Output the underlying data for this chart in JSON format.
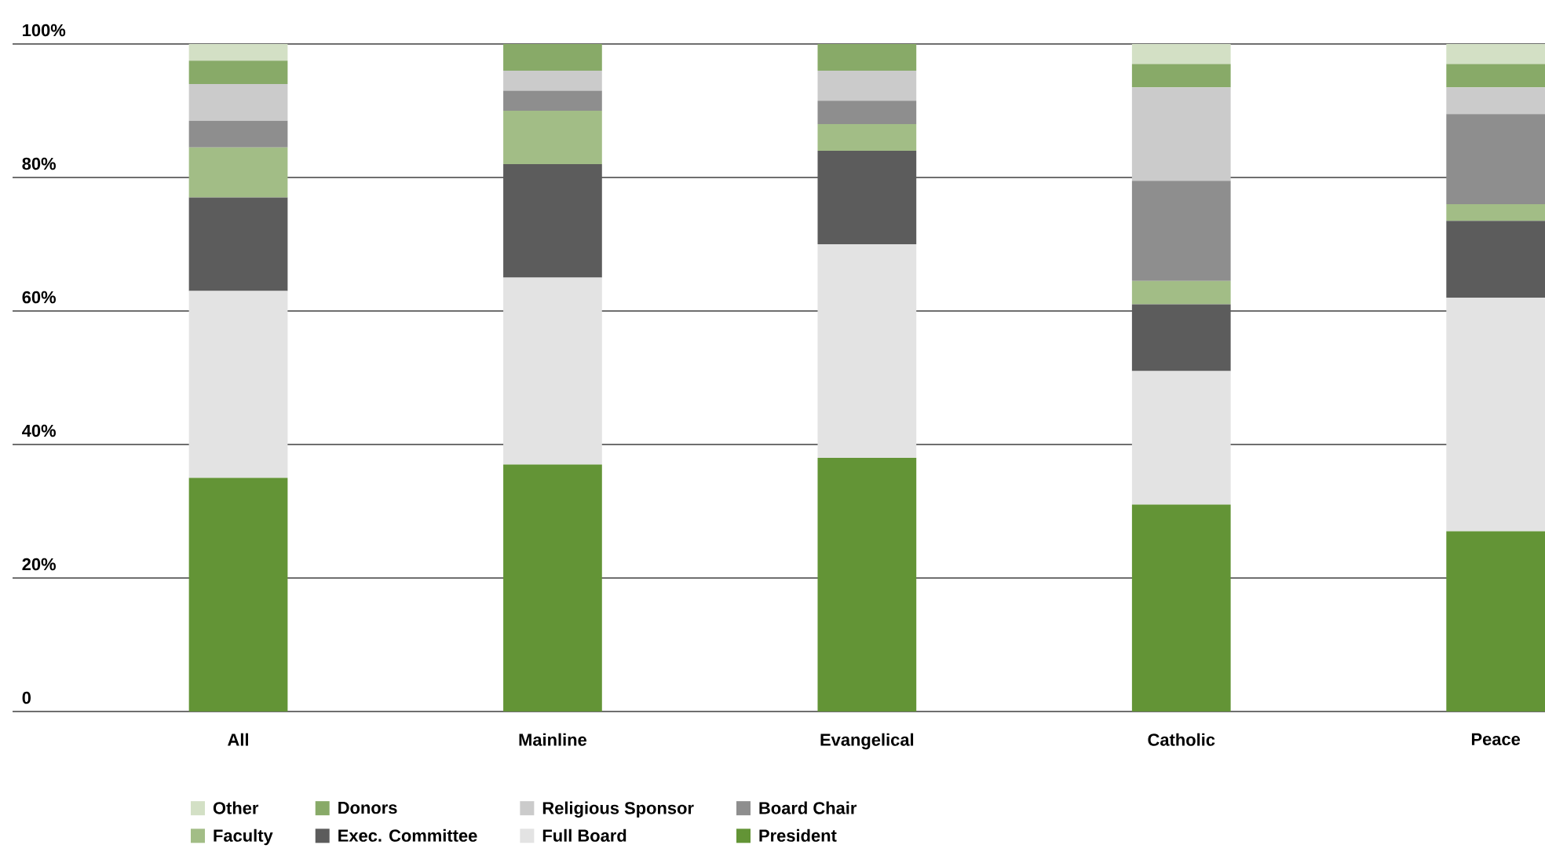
{
  "chart_data": {
    "type": "bar",
    "stacked": true,
    "categories": [
      "All",
      "Mainline",
      "Evangelical",
      "Catholic",
      "Peace"
    ],
    "series": [
      {
        "name": "President",
        "color": "#639436",
        "values": [
          35,
          37,
          38,
          31,
          27
        ]
      },
      {
        "name": "Full Board",
        "color": "#e3e3e3",
        "values": [
          28,
          28,
          32,
          20,
          35
        ]
      },
      {
        "name": "Exec. Committee",
        "color": "#5c5c5c",
        "values": [
          14,
          17,
          14,
          10,
          11.5
        ]
      },
      {
        "name": "Faculty",
        "color": "#a2bd86",
        "values": [
          7.5,
          8,
          4,
          3.5,
          2.5
        ]
      },
      {
        "name": "Board Chair",
        "color": "#8e8e8e",
        "values": [
          4,
          3,
          3.5,
          15,
          13.5
        ]
      },
      {
        "name": "Religious Sponsor",
        "color": "#cbcbcb",
        "values": [
          5.5,
          3,
          4.5,
          14,
          4
        ]
      },
      {
        "name": "Donors",
        "color": "#88aa68",
        "values": [
          3.5,
          4,
          4,
          3.5,
          3.5
        ]
      },
      {
        "name": "Other",
        "color": "#d3e0c5",
        "values": [
          2.5,
          null,
          null,
          3,
          3
        ]
      }
    ],
    "ylim": [
      0,
      100
    ],
    "yticks": [
      0,
      {
        "value": 20,
        "label": "20%"
      },
      {
        "value": 40,
        "label": "40%"
      },
      {
        "value": 60,
        "label": "60%"
      },
      {
        "value": 80,
        "label": "80%"
      },
      {
        "value": 100,
        "label": "100%"
      }
    ],
    "grid": "y",
    "legend": "bottom"
  }
}
